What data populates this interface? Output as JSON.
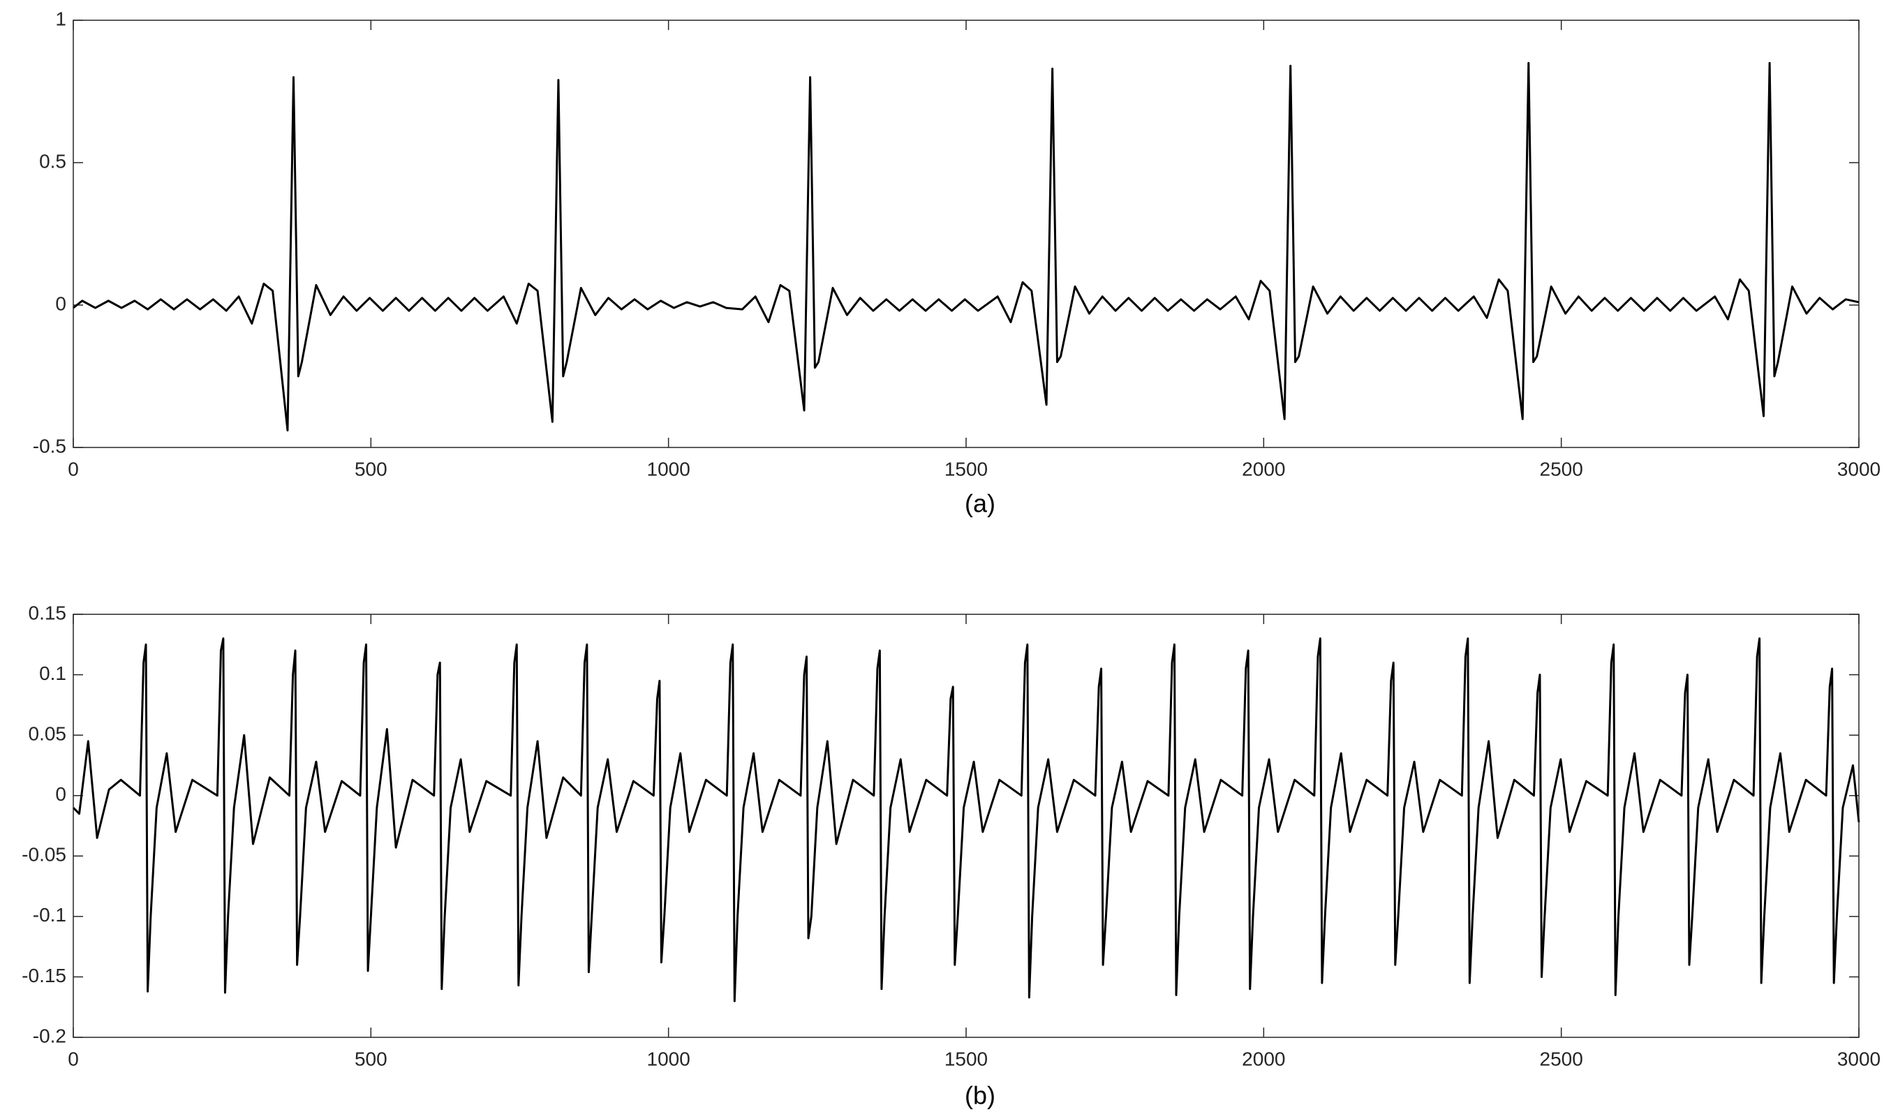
{
  "chart_data": [
    {
      "type": "line",
      "xlabel": "(a)",
      "xlim": [
        0,
        3000
      ],
      "ylim": [
        -0.5,
        1
      ],
      "xticks": [
        0,
        500,
        1000,
        1500,
        2000,
        2500,
        3000
      ],
      "yticks": [
        -0.5,
        0,
        0.5,
        1
      ],
      "x": [
        0,
        15,
        37,
        59,
        81,
        103,
        125,
        147,
        169,
        191,
        213,
        235,
        257,
        278,
        300,
        320,
        335,
        360,
        370,
        378,
        384,
        408,
        432,
        454,
        476,
        498,
        520,
        542,
        564,
        586,
        608,
        630,
        652,
        674,
        696,
        723,
        745,
        765,
        780,
        805,
        815,
        823,
        829,
        853,
        877,
        899,
        921,
        943,
        965,
        987,
        1009,
        1031,
        1053,
        1075,
        1097,
        1124,
        1146,
        1168,
        1188,
        1203,
        1228,
        1238,
        1246,
        1252,
        1276,
        1300,
        1322,
        1344,
        1366,
        1388,
        1410,
        1432,
        1454,
        1476,
        1498,
        1520,
        1553,
        1575,
        1595,
        1610,
        1635,
        1645,
        1653,
        1659,
        1683,
        1707,
        1729,
        1751,
        1773,
        1795,
        1817,
        1839,
        1861,
        1883,
        1905,
        1927,
        1953,
        1975,
        1995,
        2010,
        2035,
        2045,
        2053,
        2059,
        2083,
        2107,
        2129,
        2151,
        2173,
        2195,
        2217,
        2239,
        2261,
        2283,
        2305,
        2327,
        2353,
        2375,
        2395,
        2410,
        2435,
        2445,
        2453,
        2459,
        2483,
        2507,
        2529,
        2551,
        2573,
        2595,
        2617,
        2639,
        2661,
        2683,
        2705,
        2727,
        2758,
        2780,
        2800,
        2815,
        2840,
        2850,
        2858,
        2864,
        2888,
        2912,
        2934,
        2956,
        2978,
        3000
      ],
      "series": [
        {
          "color": "#000000",
          "values": [
            -0.01,
            0.015,
            -0.01,
            0.015,
            -0.01,
            0.015,
            -0.015,
            0.02,
            -0.015,
            0.02,
            -0.015,
            0.02,
            -0.02,
            0.03,
            -0.065,
            0.075,
            0.05,
            -0.44,
            0.8,
            -0.25,
            -0.2,
            0.07,
            -0.035,
            0.03,
            -0.02,
            0.025,
            -0.02,
            0.025,
            -0.02,
            0.025,
            -0.02,
            0.025,
            -0.02,
            0.025,
            -0.02,
            0.03,
            -0.065,
            0.075,
            0.05,
            -0.41,
            0.79,
            -0.25,
            -0.2,
            0.06,
            -0.035,
            0.025,
            -0.015,
            0.02,
            -0.015,
            0.015,
            -0.01,
            0.01,
            -0.005,
            0.01,
            -0.01,
            -0.015,
            0.03,
            -0.06,
            0.07,
            0.05,
            -0.37,
            0.8,
            -0.22,
            -0.2,
            0.06,
            -0.035,
            0.025,
            -0.02,
            0.02,
            -0.02,
            0.02,
            -0.02,
            0.02,
            -0.02,
            0.02,
            -0.02,
            0.03,
            -0.06,
            0.08,
            0.05,
            -0.35,
            0.83,
            -0.2,
            -0.18,
            0.065,
            -0.03,
            0.03,
            -0.02,
            0.025,
            -0.02,
            0.025,
            -0.02,
            0.02,
            -0.02,
            0.02,
            -0.015,
            0.03,
            -0.05,
            0.085,
            0.05,
            -0.4,
            0.84,
            -0.2,
            -0.18,
            0.065,
            -0.03,
            0.03,
            -0.02,
            0.025,
            -0.02,
            0.025,
            -0.02,
            0.025,
            -0.02,
            0.025,
            -0.02,
            0.03,
            -0.045,
            0.09,
            0.05,
            -0.4,
            0.85,
            -0.2,
            -0.18,
            0.065,
            -0.03,
            0.03,
            -0.02,
            0.025,
            -0.02,
            0.025,
            -0.02,
            0.025,
            -0.02,
            0.025,
            -0.02,
            0.03,
            -0.05,
            0.09,
            0.05,
            -0.39,
            0.85,
            -0.25,
            -0.2,
            0.065,
            -0.03,
            0.025,
            -0.015,
            0.02,
            0.01
          ]
        }
      ]
    },
    {
      "type": "line",
      "xlabel": "(b)",
      "xlim": [
        0,
        3000
      ],
      "ylim": [
        -0.2,
        0.15
      ],
      "xticks": [
        0,
        500,
        1000,
        1500,
        2000,
        2500,
        3000
      ],
      "yticks": [
        -0.2,
        -0.15,
        -0.1,
        -0.05,
        0,
        0.05,
        0.1,
        0.15
      ],
      "x": [
        0,
        10,
        25,
        40,
        60,
        80,
        112,
        118,
        122,
        125,
        130,
        140,
        157,
        172,
        200,
        242,
        248,
        252,
        255,
        260,
        270,
        287,
        302,
        330,
        363,
        369,
        373,
        376,
        381,
        391,
        408,
        423,
        451,
        482,
        488,
        492,
        495,
        500,
        510,
        527,
        542,
        570,
        606,
        612,
        616,
        619,
        624,
        634,
        651,
        666,
        694,
        735,
        741,
        745,
        748,
        753,
        763,
        780,
        795,
        823,
        853,
        859,
        863,
        866,
        871,
        881,
        898,
        913,
        941,
        975,
        981,
        985,
        988,
        993,
        1003,
        1020,
        1035,
        1063,
        1098,
        1104,
        1108,
        1111,
        1116,
        1126,
        1143,
        1158,
        1186,
        1222,
        1228,
        1232,
        1235,
        1240,
        1250,
        1267,
        1282,
        1310,
        1345,
        1351,
        1355,
        1358,
        1363,
        1373,
        1390,
        1405,
        1433,
        1468,
        1474,
        1478,
        1481,
        1486,
        1496,
        1513,
        1528,
        1556,
        1593,
        1599,
        1603,
        1606,
        1611,
        1621,
        1638,
        1653,
        1681,
        1717,
        1723,
        1727,
        1730,
        1735,
        1745,
        1762,
        1777,
        1805,
        1840,
        1846,
        1850,
        1853,
        1858,
        1868,
        1885,
        1900,
        1928,
        1964,
        1970,
        1974,
        1977,
        1982,
        1992,
        2009,
        2024,
        2052,
        2085,
        2091,
        2095,
        2098,
        2103,
        2113,
        2130,
        2145,
        2173,
        2208,
        2214,
        2218,
        2221,
        2226,
        2236,
        2253,
        2268,
        2296,
        2333,
        2339,
        2343,
        2346,
        2351,
        2361,
        2378,
        2393,
        2421,
        2454,
        2460,
        2464,
        2467,
        2472,
        2482,
        2499,
        2514,
        2542,
        2578,
        2584,
        2588,
        2591,
        2596,
        2606,
        2623,
        2638,
        2666,
        2702,
        2708,
        2712,
        2715,
        2720,
        2730,
        2747,
        2762,
        2790,
        2823,
        2829,
        2833,
        2836,
        2841,
        2851,
        2868,
        2883,
        2911,
        2945,
        2951,
        2955,
        2958,
        2963,
        2973,
        2990,
        3000
      ],
      "series": [
        {
          "color": "#000000",
          "values": [
            -0.01,
            -0.015,
            0.045,
            -0.035,
            0.005,
            0.013,
            0,
            0.11,
            0.125,
            -0.162,
            -0.1,
            -0.01,
            0.035,
            -0.03,
            0.013,
            0,
            0.12,
            0.13,
            -0.163,
            -0.1,
            -0.01,
            0.05,
            -0.04,
            0.015,
            0,
            0.1,
            0.12,
            -0.14,
            -0.1,
            -0.01,
            0.028,
            -0.03,
            0.012,
            0,
            0.11,
            0.125,
            -0.145,
            -0.1,
            -0.01,
            0.055,
            -0.043,
            0.013,
            0,
            0.1,
            0.11,
            -0.16,
            -0.1,
            -0.01,
            0.03,
            -0.03,
            0.012,
            0,
            0.11,
            0.125,
            -0.157,
            -0.1,
            -0.01,
            0.045,
            -0.035,
            0.015,
            0,
            0.11,
            0.125,
            -0.146,
            -0.1,
            -0.01,
            0.03,
            -0.03,
            0.012,
            0,
            0.08,
            0.095,
            -0.138,
            -0.1,
            -0.01,
            0.035,
            -0.03,
            0.013,
            0,
            0.11,
            0.125,
            -0.17,
            -0.1,
            -0.01,
            0.035,
            -0.03,
            0.013,
            0,
            0.1,
            0.115,
            -0.118,
            -0.1,
            -0.01,
            0.045,
            -0.04,
            0.013,
            0,
            0.105,
            0.12,
            -0.16,
            -0.1,
            -0.01,
            0.03,
            -0.03,
            0.013,
            0,
            0.08,
            0.09,
            -0.14,
            -0.1,
            -0.01,
            0.028,
            -0.03,
            0.013,
            0,
            0.11,
            0.125,
            -0.167,
            -0.1,
            -0.01,
            0.03,
            -0.03,
            0.013,
            0,
            0.09,
            0.105,
            -0.14,
            -0.1,
            -0.01,
            0.028,
            -0.03,
            0.012,
            0,
            0.11,
            0.125,
            -0.165,
            -0.1,
            -0.01,
            0.03,
            -0.03,
            0.013,
            0,
            0.105,
            0.12,
            -0.16,
            -0.1,
            -0.01,
            0.03,
            -0.03,
            0.013,
            0,
            0.115,
            0.13,
            -0.155,
            -0.1,
            -0.01,
            0.035,
            -0.03,
            0.013,
            0,
            0.095,
            0.11,
            -0.14,
            -0.1,
            -0.01,
            0.028,
            -0.03,
            0.013,
            0,
            0.115,
            0.13,
            -0.155,
            -0.1,
            -0.01,
            0.045,
            -0.035,
            0.013,
            0,
            0.085,
            0.1,
            -0.15,
            -0.1,
            -0.01,
            0.03,
            -0.03,
            0.012,
            0,
            0.11,
            0.125,
            -0.165,
            -0.1,
            -0.01,
            0.035,
            -0.03,
            0.013,
            0,
            0.085,
            0.1,
            -0.14,
            -0.1,
            -0.01,
            0.03,
            -0.03,
            0.013,
            0,
            0.115,
            0.13,
            -0.155,
            -0.1,
            -0.01,
            0.035,
            -0.03,
            0.013,
            0,
            0.09,
            0.105,
            -0.155,
            -0.1,
            -0.01,
            0.025,
            -0.022
          ]
        }
      ]
    }
  ]
}
